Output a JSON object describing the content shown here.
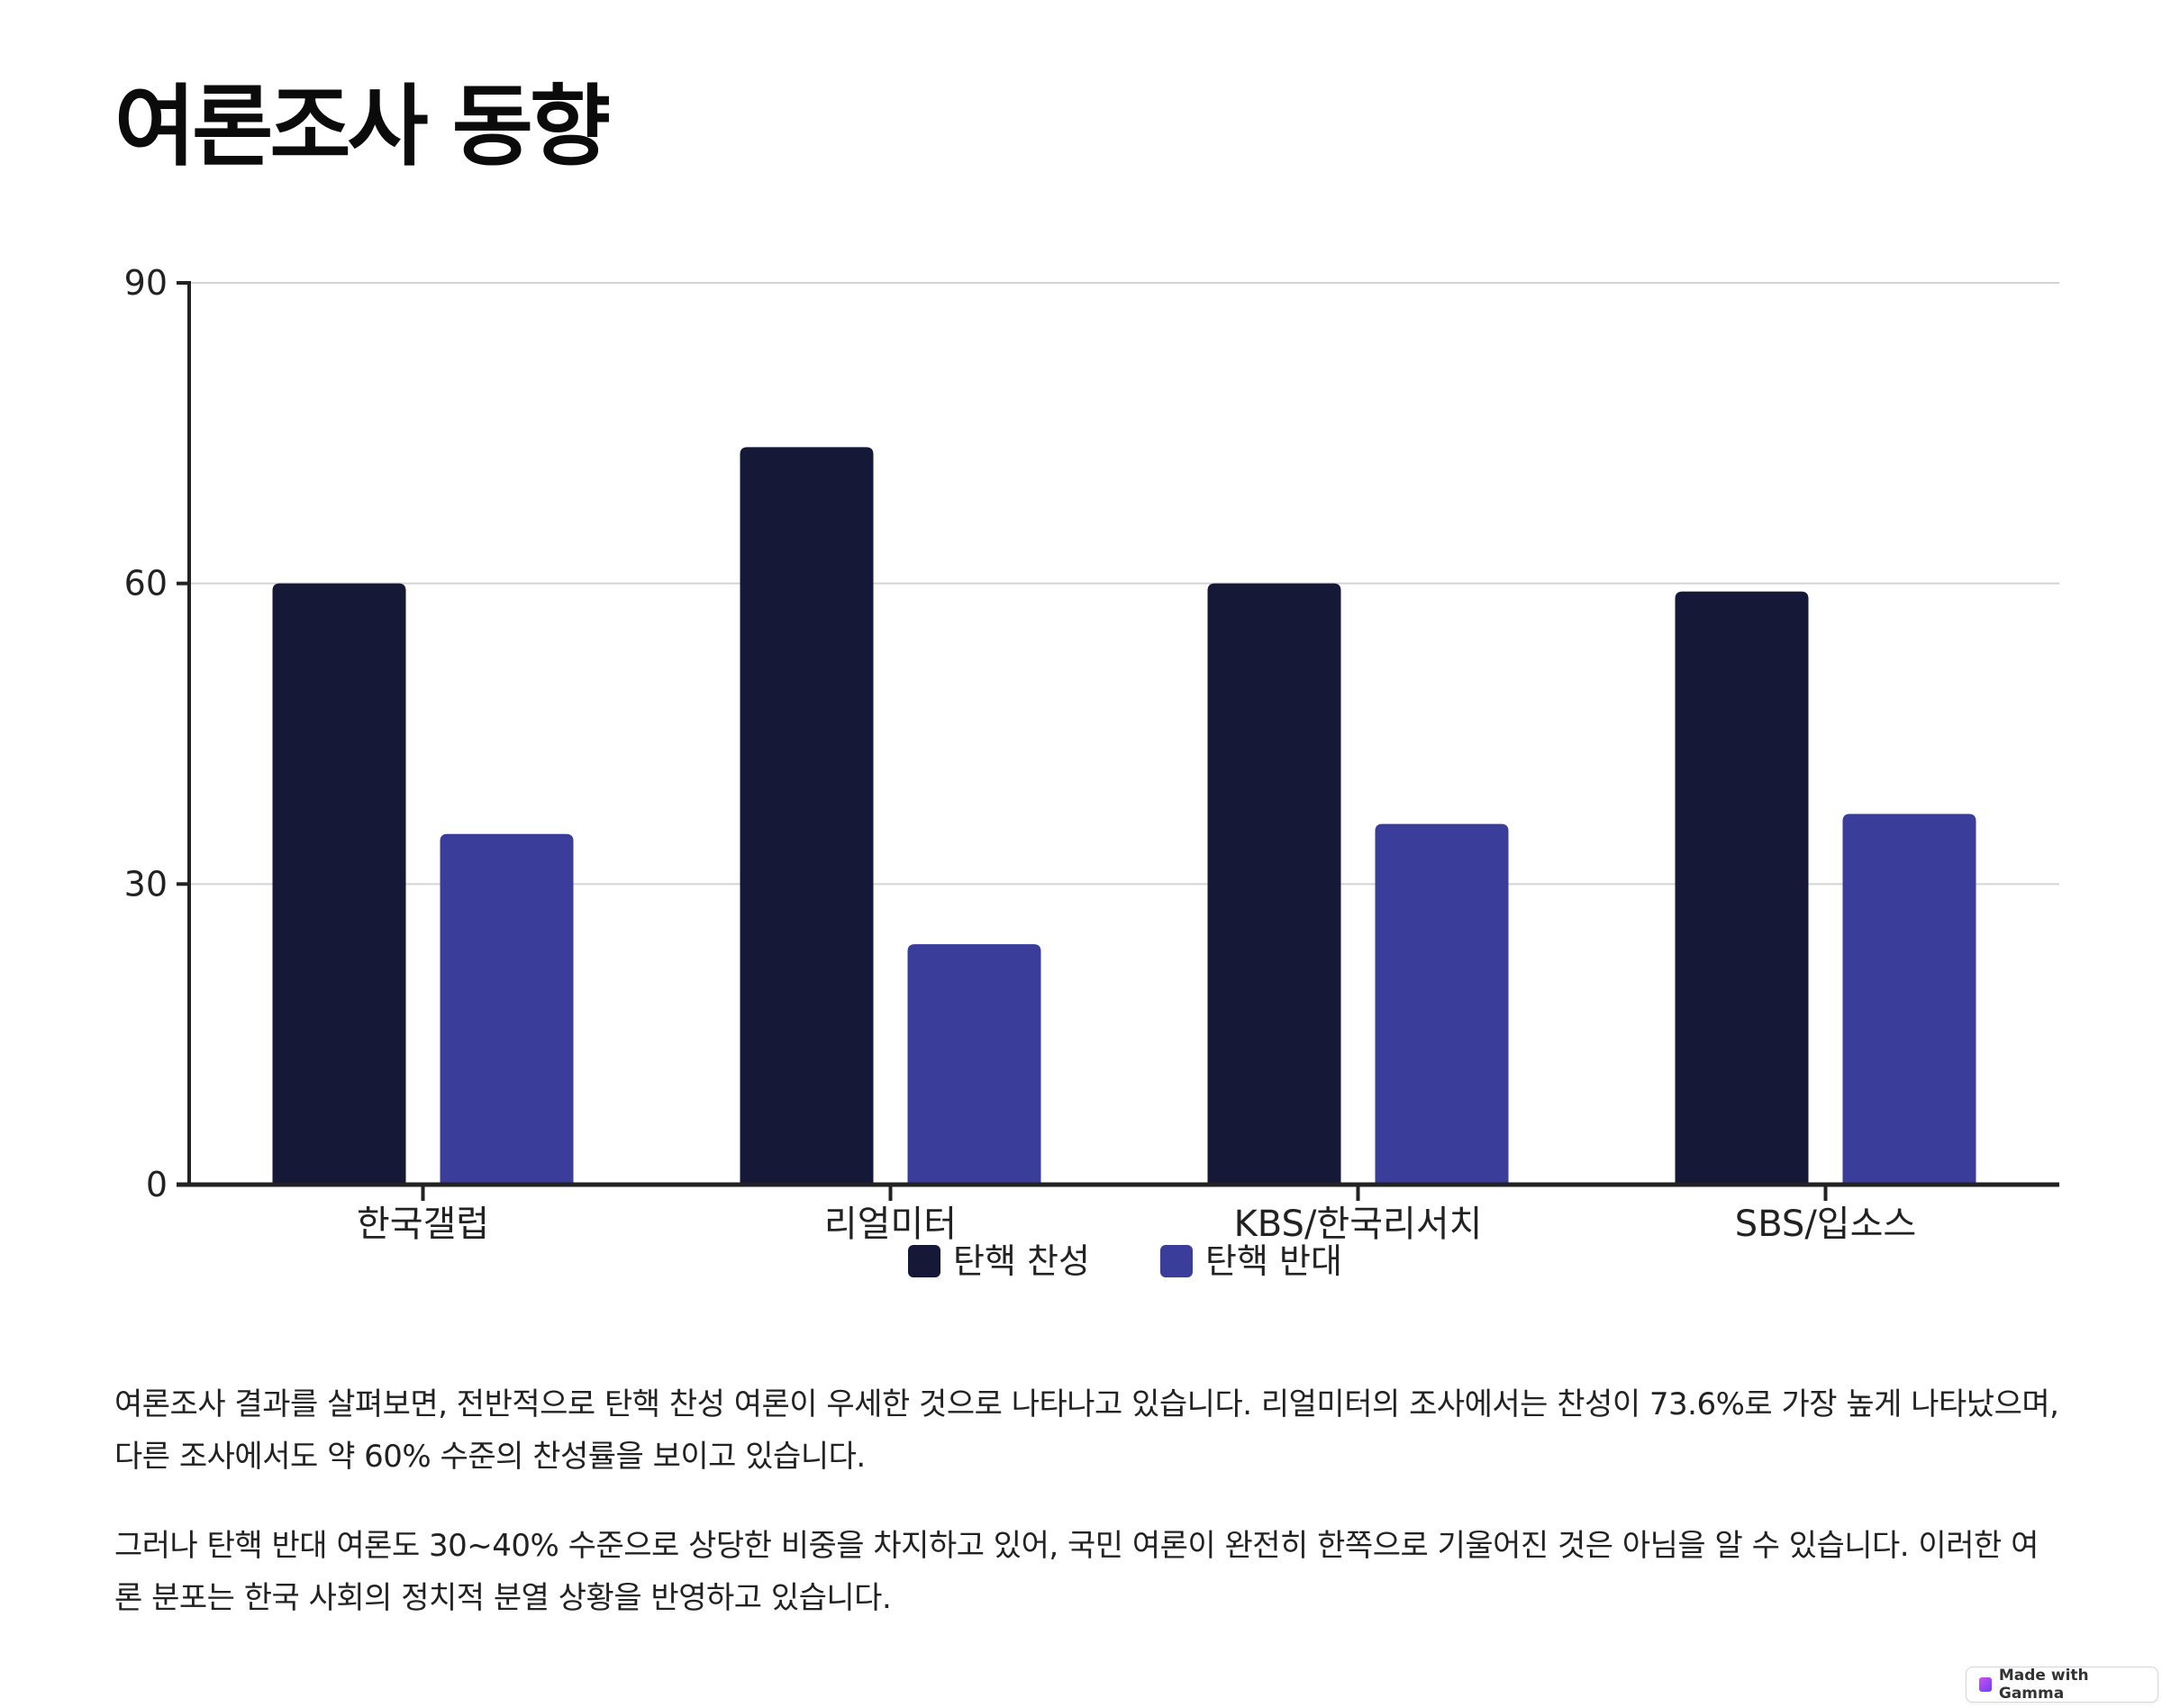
{
  "title": "여론조사 동향",
  "chart_data": {
    "type": "bar",
    "categories": [
      "한국갤럽",
      "리얼미터",
      "KBS/한국리서치",
      "SBS/입소스"
    ],
    "series": [
      {
        "name": "탄핵 찬성",
        "values": [
          60,
          73.6,
          60,
          59.2
        ],
        "color": "#161838"
      },
      {
        "name": "탄핵 반대",
        "values": [
          35,
          24,
          36,
          37
        ],
        "color": "#3a3d9a"
      }
    ],
    "ylim": [
      0,
      90
    ],
    "yticks": [
      "0",
      "30",
      "60",
      "90"
    ],
    "grid": true,
    "legend": "bottom-center"
  },
  "paragraphs": [
    "여론조사 결과를 살펴보면, 전반적으로 탄핵 찬성 여론이 우세한 것으로 나타나고 있습니다. 리얼미터의 조사에서는 찬성이 73.6%로 가장 높게 나타났으며, 다른 조사에서도 약 60% 수준의 찬성률을 보이고 있습니다.",
    "그러나 탄핵 반대 여론도 30~40% 수준으로 상당한 비중을 차지하고 있어, 국민 여론이 완전히 한쪽으로 기울어진 것은 아님을 알 수 있습니다. 이러한 여론 분포는 한국 사회의 정치적 분열 상황을 반영하고 있습니다."
  ],
  "badge": {
    "label": "Made with Gamma",
    "icon": "gamma-logo-icon"
  }
}
